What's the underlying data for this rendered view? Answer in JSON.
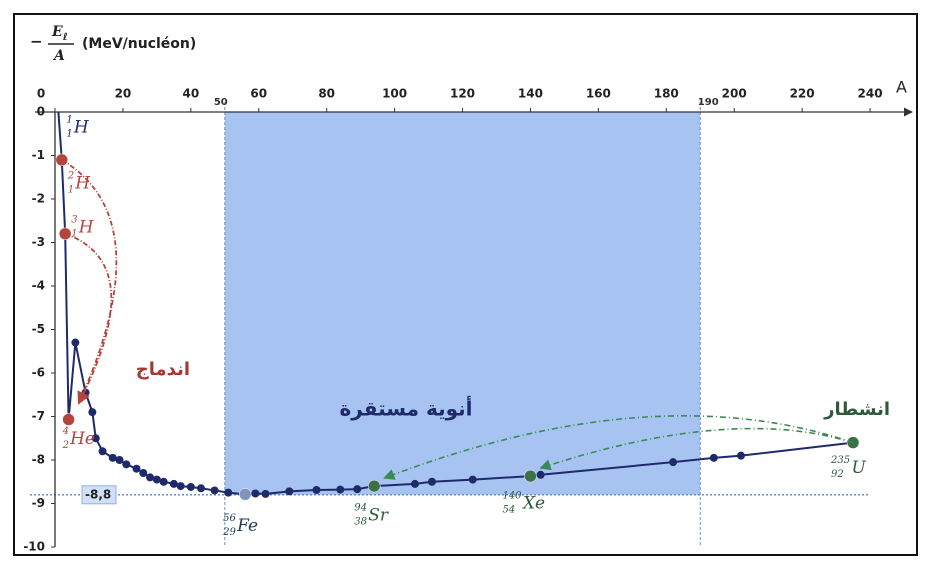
{
  "chart_data": {
    "type": "line",
    "y_label": {
      "sign": "−",
      "numerator": "E",
      "sub": "ℓ",
      "denominator": "A",
      "unit": "(MeV/nucléon)"
    },
    "x_label": "A",
    "xlim": [
      0,
      250
    ],
    "ylim": [
      -10,
      0
    ],
    "xticks": [
      0,
      20,
      40,
      60,
      80,
      100,
      120,
      140,
      160,
      180,
      200,
      220,
      240
    ],
    "yticks": [
      0,
      -1,
      -2,
      -3,
      -4,
      -5,
      -6,
      -7,
      -8,
      -9,
      -10
    ],
    "series": [
      {
        "color": "#1f2a6b",
        "x": [
          1,
          2,
          3,
          4,
          6,
          9,
          11,
          12,
          14,
          17,
          19,
          21,
          24,
          26,
          28,
          30,
          32,
          35,
          37,
          40,
          43,
          47,
          51,
          56,
          59,
          62,
          69,
          77,
          84,
          89,
          94,
          106,
          111,
          123,
          140,
          143,
          182,
          194,
          202,
          235
        ],
        "values": [
          0,
          -1.1,
          -2.8,
          -7.07,
          -5.3,
          -6.45,
          -6.9,
          -7.5,
          -7.8,
          -7.95,
          -8.0,
          -8.1,
          -8.2,
          -8.3,
          -8.4,
          -8.45,
          -8.5,
          -8.55,
          -8.6,
          -8.62,
          -8.65,
          -8.7,
          -8.75,
          -8.79,
          -8.77,
          -8.78,
          -8.72,
          -8.69,
          -8.68,
          -8.67,
          -8.6,
          -8.55,
          -8.5,
          -8.45,
          -8.37,
          -8.34,
          -8.05,
          -7.95,
          -7.9,
          -7.6
        ]
      }
    ],
    "stable_region": {
      "xlim": [
        50,
        190
      ],
      "label": "أنوية مستقرة",
      "color": "#a6c3f1"
    },
    "reference_line": {
      "value": -8.8,
      "label": "-8,8"
    },
    "nuclides": [
      {
        "mass": "1",
        "Z": "1",
        "symbol": "H"
      },
      {
        "mass": "2",
        "Z": "1",
        "symbol": "H",
        "color": "#b5443c"
      },
      {
        "mass": "3",
        "Z": "1",
        "symbol": "H",
        "color": "#b5443c"
      },
      {
        "mass": "4",
        "Z": "2",
        "symbol": "He",
        "color": "#b5443c"
      },
      {
        "mass": "56",
        "Z": "29",
        "symbol": "Fe",
        "color": "#7f95bd"
      },
      {
        "mass": "94",
        "Z": "38",
        "symbol": "Sr",
        "color": "#3b7048"
      },
      {
        "mass": "140",
        "Z": "54",
        "symbol": "Xe",
        "color": "#3b7048"
      },
      {
        "mass": "235",
        "Z": "92",
        "symbol": "U",
        "color": "#3b7048"
      }
    ],
    "fusion_label": "اندماج",
    "fission_label": "انشطار"
  }
}
